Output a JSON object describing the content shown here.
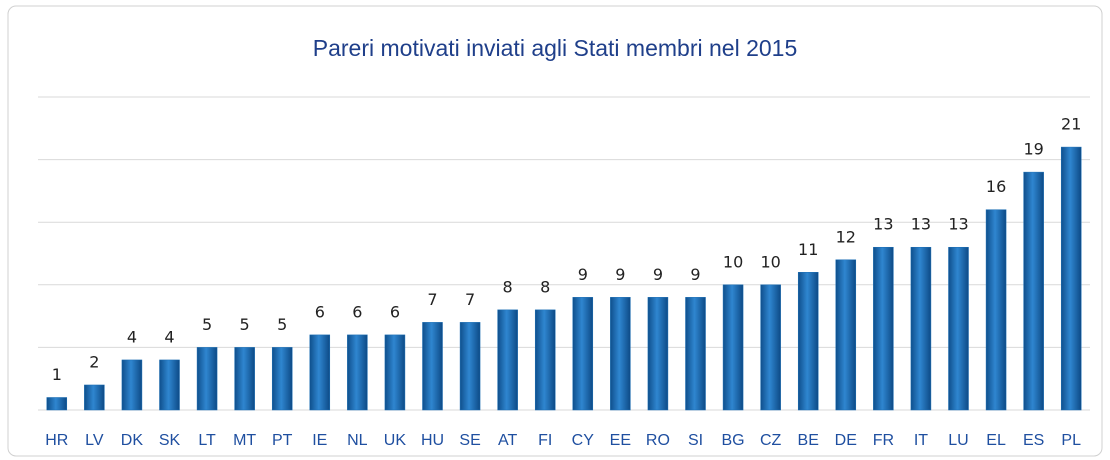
{
  "chart_data": {
    "type": "bar",
    "title": "Pareri motivati inviati agli Stati membri nel 2015",
    "categories": [
      "HR",
      "LV",
      "DK",
      "SK",
      "LT",
      "MT",
      "PT",
      "IE",
      "NL",
      "UK",
      "HU",
      "SE",
      "AT",
      "FI",
      "CY",
      "EE",
      "RO",
      "SI",
      "BG",
      "CZ",
      "BE",
      "DE",
      "FR",
      "IT",
      "LU",
      "EL",
      "ES",
      "PL"
    ],
    "values": [
      1,
      2,
      4,
      4,
      5,
      5,
      5,
      6,
      6,
      6,
      7,
      7,
      8,
      8,
      9,
      9,
      9,
      9,
      10,
      10,
      11,
      12,
      13,
      13,
      13,
      16,
      19,
      21
    ],
    "color": "#1a6db3",
    "ylim": [
      0,
      25
    ],
    "yticks": [
      0,
      5,
      10,
      15,
      20,
      25
    ],
    "grid": true
  }
}
